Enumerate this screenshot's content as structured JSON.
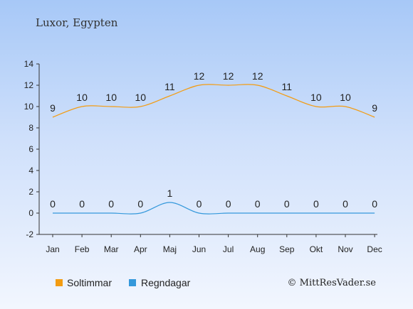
{
  "chart_data": {
    "type": "line",
    "title": "Luxor, Egypten",
    "categories": [
      "Jan",
      "Feb",
      "Mar",
      "Apr",
      "Maj",
      "Jun",
      "Jul",
      "Aug",
      "Sep",
      "Okt",
      "Nov",
      "Dec"
    ],
    "ylim": [
      -2,
      14
    ],
    "yticks": [
      -2,
      0,
      2,
      4,
      6,
      8,
      10,
      12,
      14
    ],
    "grid": false,
    "legend_placement": "bottom-left",
    "series": [
      {
        "name": "Soltimmar",
        "color": "#f39c12",
        "values": [
          9,
          10,
          10,
          10,
          11,
          12,
          12,
          12,
          11,
          10,
          10,
          9
        ]
      },
      {
        "name": "Regndagar",
        "color": "#3498db",
        "values": [
          0,
          0,
          0,
          0,
          1,
          0,
          0,
          0,
          0,
          0,
          0,
          0
        ]
      }
    ]
  },
  "copyright": "© MittResVader.se"
}
